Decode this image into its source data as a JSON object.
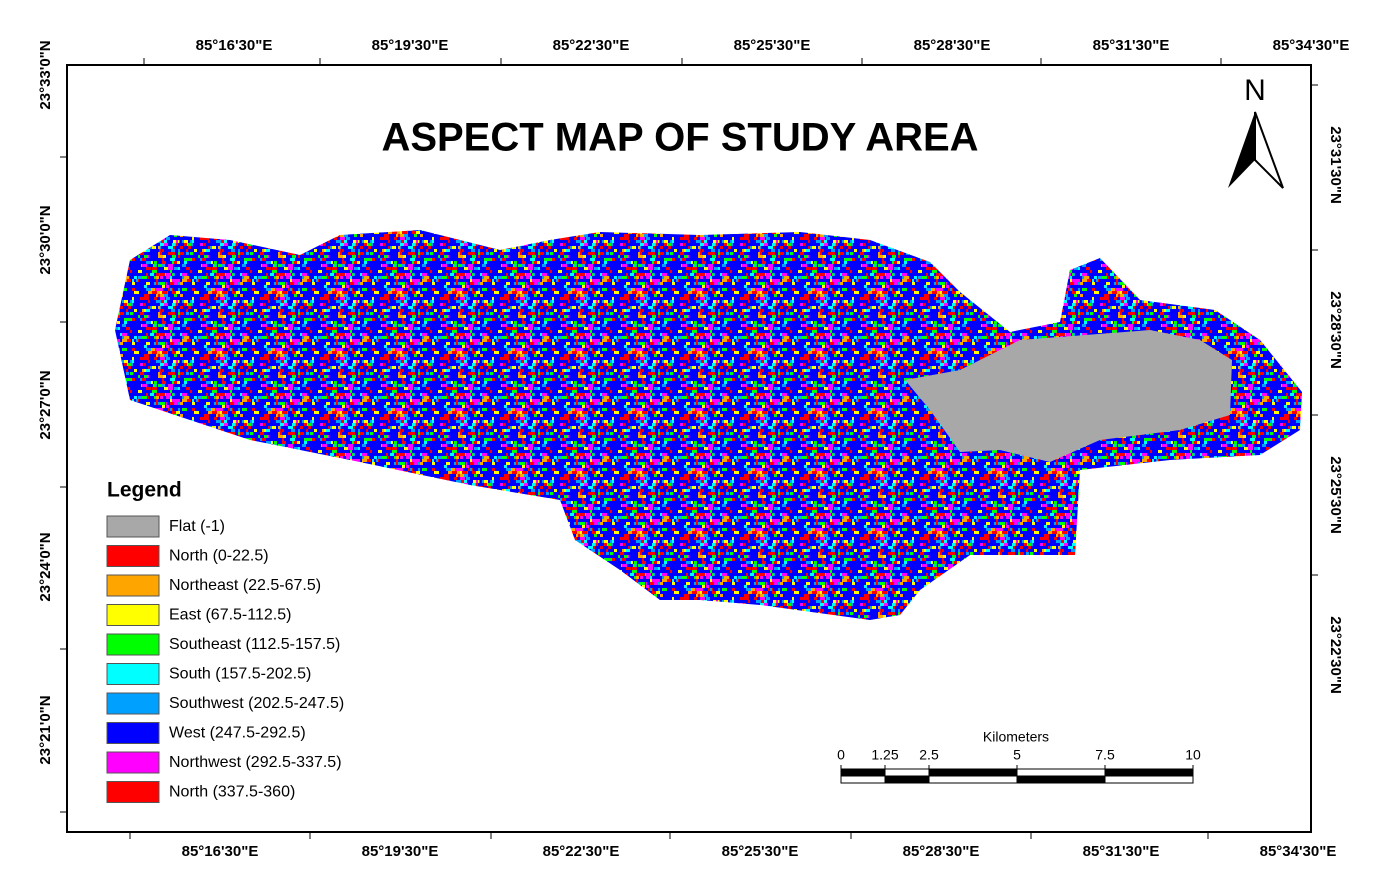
{
  "title": "ASPECT MAP OF STUDY AREA",
  "north_arrow": "N",
  "graticule": {
    "top": [
      "85°16'30\"E",
      "85°19'30\"E",
      "85°22'30\"E",
      "85°25'30\"E",
      "85°28'30\"E",
      "85°31'30\"E",
      "85°34'30\"E"
    ],
    "bottom": [
      "85°16'30\"E",
      "85°19'30\"E",
      "85°22'30\"E",
      "85°25'30\"E",
      "85°28'30\"E",
      "85°31'30\"E",
      "85°34'30\"E"
    ],
    "left": [
      "23°33'0\"N",
      "23°30'0\"N",
      "23°27'0\"N",
      "23°24'0\"N",
      "23°21'0\"N"
    ],
    "right": [
      "23°31'30\"N",
      "23°28'30\"N",
      "23°25'30\"N",
      "23°22'30\"N"
    ]
  },
  "legend": {
    "title": "Legend",
    "items": [
      {
        "label": "Flat (-1)",
        "color": "#a8a8a8"
      },
      {
        "label": "North (0-22.5)",
        "color": "#ff0000"
      },
      {
        "label": "Northeast (22.5-67.5)",
        "color": "#ffa500"
      },
      {
        "label": "East (67.5-112.5)",
        "color": "#ffff00"
      },
      {
        "label": "Southeast (112.5-157.5)",
        "color": "#00ff00"
      },
      {
        "label": "South (157.5-202.5)",
        "color": "#00ffff"
      },
      {
        "label": "Southwest (202.5-247.5)",
        "color": "#00a0ff"
      },
      {
        "label": "West (247.5-292.5)",
        "color": "#0000ff"
      },
      {
        "label": "Northwest (292.5-337.5)",
        "color": "#ff00ff"
      },
      {
        "label": "North (337.5-360)",
        "color": "#ff0000"
      }
    ]
  },
  "scale_bar": {
    "unit": "Kilometers",
    "ticks": [
      0,
      1.25,
      2.5,
      5,
      7.5,
      10
    ]
  }
}
